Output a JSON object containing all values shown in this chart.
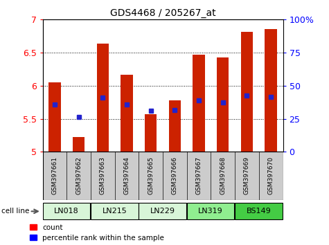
{
  "title": "GDS4468 / 205267_at",
  "samples": [
    "GSM397661",
    "GSM397662",
    "GSM397663",
    "GSM397664",
    "GSM397665",
    "GSM397666",
    "GSM397667",
    "GSM397668",
    "GSM397669",
    "GSM397670"
  ],
  "count_values": [
    6.05,
    5.22,
    6.64,
    6.17,
    5.57,
    5.78,
    6.47,
    6.43,
    6.82,
    6.86
  ],
  "percentile_values": [
    5.72,
    5.53,
    5.82,
    5.72,
    5.62,
    5.63,
    5.78,
    5.75,
    5.85,
    5.83
  ],
  "ylim_left": [
    5.0,
    7.0
  ],
  "ylim_right": [
    0,
    100
  ],
  "yticks_left": [
    5.0,
    5.5,
    6.0,
    6.5,
    7.0
  ],
  "ytick_labels_left": [
    "5",
    "5.5",
    "6",
    "6.5",
    "7"
  ],
  "yticks_right": [
    0,
    25,
    50,
    75,
    100
  ],
  "ytick_labels_right": [
    "0",
    "25",
    "50",
    "75",
    "100%"
  ],
  "cell_lines": [
    {
      "name": "LN018",
      "start": 0,
      "end": 1,
      "color": "#d8f5d8"
    },
    {
      "name": "LN215",
      "start": 2,
      "end": 3,
      "color": "#d8f5d8"
    },
    {
      "name": "LN229",
      "start": 4,
      "end": 5,
      "color": "#d8f5d8"
    },
    {
      "name": "LN319",
      "start": 6,
      "end": 7,
      "color": "#90ee90"
    },
    {
      "name": "BS149",
      "start": 8,
      "end": 9,
      "color": "#44cc44"
    }
  ],
  "bar_color": "#cc2200",
  "percentile_color": "#2222cc",
  "bar_bottom": 5.0,
  "bar_width": 0.5,
  "sample_bg_color": "#cccccc",
  "cell_line_label": "cell line"
}
